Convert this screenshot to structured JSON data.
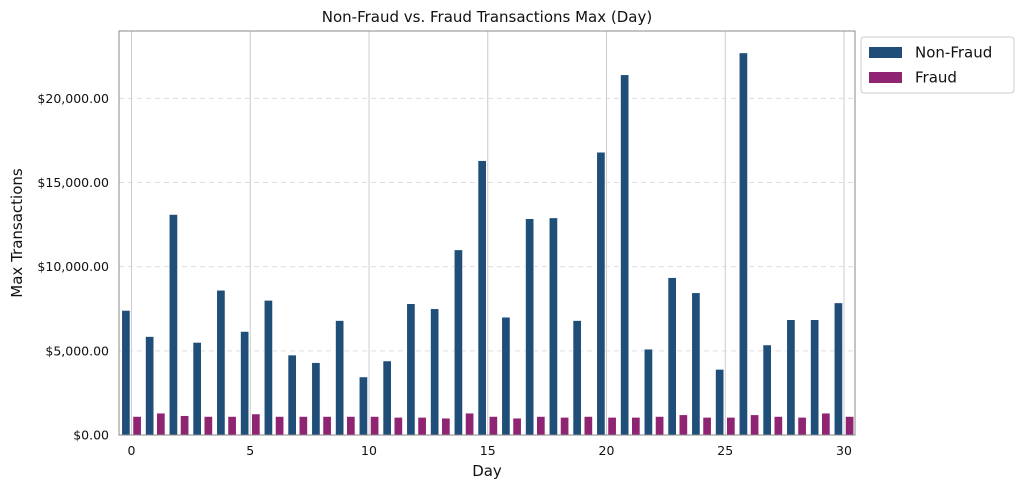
{
  "chart_data": {
    "type": "bar",
    "title": "Non-Fraud vs. Fraud Transactions Max (Day)",
    "xlabel": "Day",
    "ylabel": "Max Transactions",
    "categories": [
      0,
      1,
      2,
      3,
      4,
      5,
      6,
      7,
      8,
      9,
      10,
      11,
      12,
      13,
      14,
      15,
      16,
      17,
      18,
      19,
      20,
      21,
      22,
      23,
      24,
      25,
      26,
      27,
      28,
      29,
      30
    ],
    "x_ticks": [
      0,
      5,
      10,
      15,
      20,
      25,
      30
    ],
    "y_ticks": [
      0,
      5000,
      10000,
      15000,
      20000
    ],
    "y_tick_labels": [
      "$0.00",
      "$5,000.00",
      "$10,000.00",
      "$15,000.00",
      "$20,000.00"
    ],
    "ylim": [
      0,
      24000
    ],
    "grid": {
      "x": "solid",
      "y": "dashed"
    },
    "legend_position": "outside-top-right",
    "series": [
      {
        "name": "Non-Fraud",
        "color": "#1f4e79",
        "values": [
          7400,
          5850,
          13100,
          5500,
          8600,
          6150,
          8000,
          4750,
          4300,
          6800,
          3450,
          4400,
          7800,
          7500,
          11000,
          16300,
          7000,
          12850,
          12900,
          6800,
          16800,
          21400,
          5100,
          9350,
          8450,
          3900,
          22700,
          5350,
          6850,
          6850,
          7850
        ]
      },
      {
        "name": "Fraud",
        "color": "#8e2472",
        "values": [
          1100,
          1300,
          1150,
          1100,
          1100,
          1250,
          1100,
          1100,
          1100,
          1100,
          1100,
          1050,
          1050,
          1000,
          1300,
          1100,
          1000,
          1100,
          1050,
          1100,
          1050,
          1050,
          1100,
          1200,
          1050,
          1050,
          1200,
          1100,
          1050,
          1300,
          1100
        ]
      }
    ]
  }
}
